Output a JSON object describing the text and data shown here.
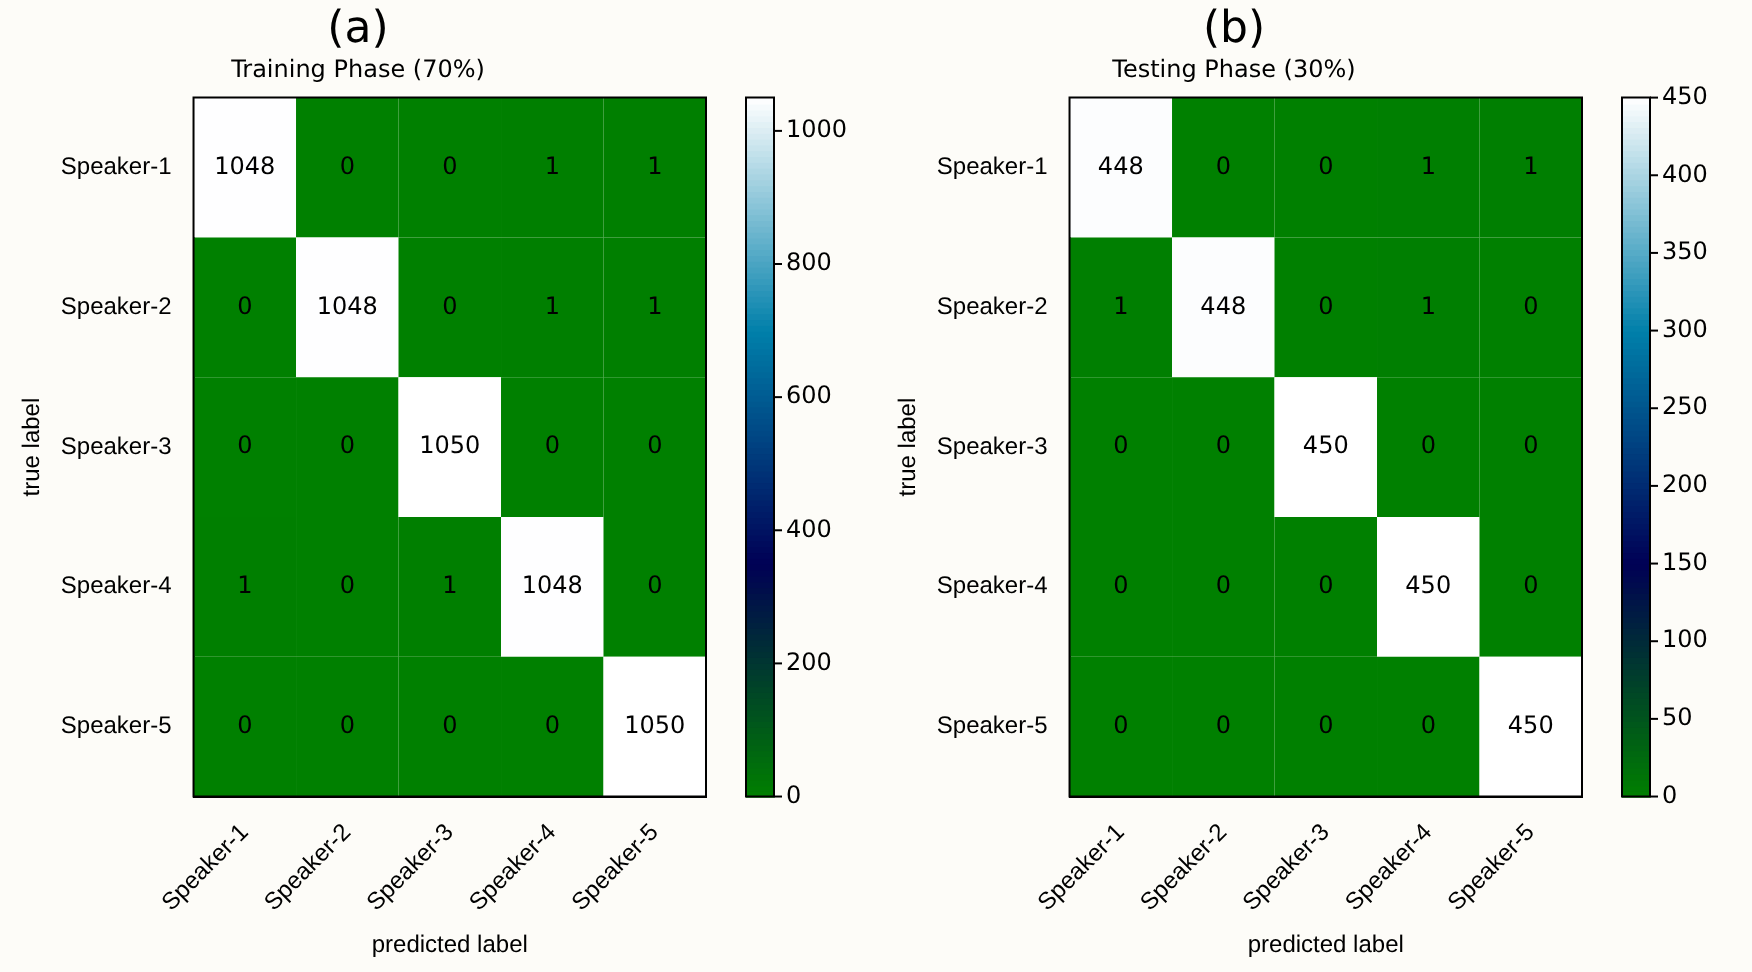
{
  "chart_data": [
    {
      "type": "heatmap",
      "title": "(a)",
      "subtitle": "Training Phase (70%)",
      "xlabel": "predicted label",
      "ylabel": "true label",
      "categories": [
        "Speaker-1",
        "Speaker-2",
        "Speaker-3",
        "Speaker-4",
        "Speaker-5"
      ],
      "y_categories": [
        "Speaker-1",
        "Speaker-2",
        "Speaker-3",
        "Speaker-4",
        "Speaker-5"
      ],
      "cells": [
        [
          1048,
          0,
          0,
          1,
          1
        ],
        [
          0,
          1048,
          0,
          1,
          1
        ],
        [
          0,
          0,
          1050,
          0,
          0
        ],
        [
          1,
          0,
          1,
          1048,
          0
        ],
        [
          0,
          0,
          0,
          0,
          1050
        ]
      ],
      "clim": [
        0,
        1050
      ],
      "cticks": [
        0,
        200,
        400,
        600,
        800,
        1000
      ],
      "data_labels": true
    },
    {
      "type": "heatmap",
      "title": "(b)",
      "subtitle": "Testing Phase (30%)",
      "xlabel": "predicted label",
      "ylabel": "true label",
      "categories": [
        "Speaker-1",
        "Speaker-2",
        "Speaker-3",
        "Speaker-4",
        "Speaker-5"
      ],
      "y_categories": [
        "Speaker-1",
        "Speaker-2",
        "Speaker-3",
        "Speaker-4",
        "Speaker-5"
      ],
      "cells": [
        [
          448,
          0,
          0,
          1,
          1
        ],
        [
          1,
          448,
          0,
          1,
          0
        ],
        [
          0,
          0,
          450,
          0,
          0
        ],
        [
          0,
          0,
          0,
          450,
          0
        ],
        [
          0,
          0,
          0,
          0,
          450
        ]
      ],
      "clim": [
        0,
        450
      ],
      "cticks": [
        0,
        50,
        100,
        150,
        200,
        250,
        300,
        350,
        400,
        450
      ],
      "data_labels": true
    }
  ]
}
